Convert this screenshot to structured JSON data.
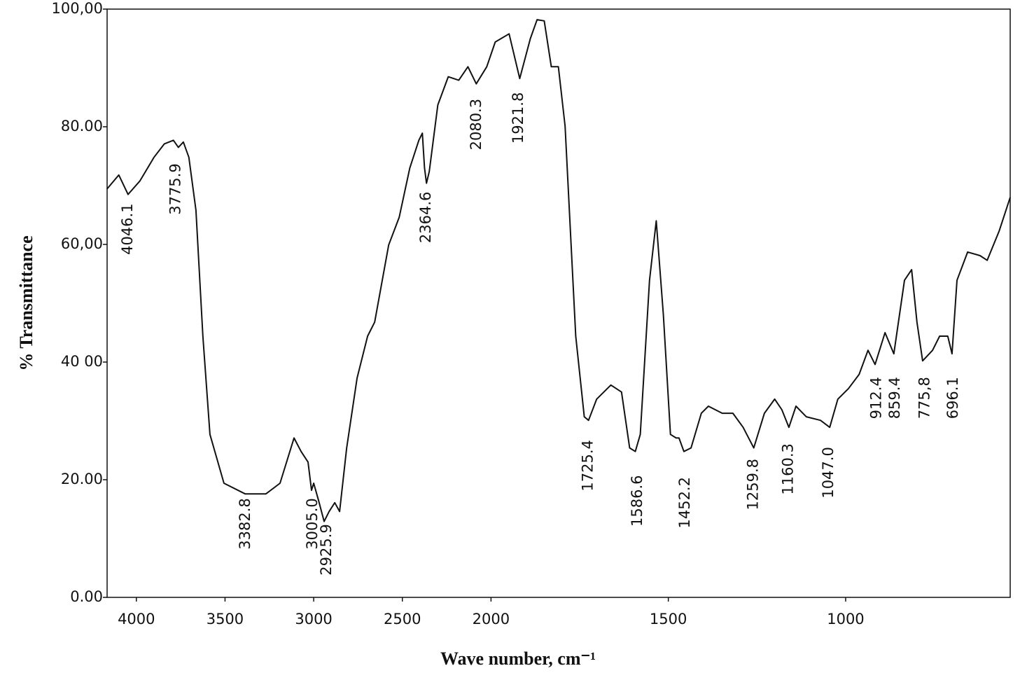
{
  "chart_data": {
    "type": "line",
    "xlabel": "Wave number, cm⁻¹",
    "ylabel": "% Transmittance",
    "xlim": [
      4165,
      536
    ],
    "x_scale_change": {
      "at": 2000,
      "factor": 2
    },
    "xticks": [
      4000,
      3500,
      3000,
      2500,
      2000,
      1500,
      1000
    ],
    "ylim": [
      0,
      100
    ],
    "yticks": [
      {
        "value": 0,
        "label": "0.00"
      },
      {
        "value": 20,
        "label": "20.00"
      },
      {
        "value": 40,
        "label": "40 00"
      },
      {
        "value": 60,
        "label": "60,00"
      },
      {
        "value": 80,
        "label": "80.00"
      },
      {
        "value": 100,
        "label": "100,00"
      }
    ],
    "color": "#111111",
    "x": [
      4166,
      4099,
      4047,
      3980,
      3901,
      3842,
      3791,
      3763,
      3735,
      3704,
      3664,
      3625,
      3585,
      3506,
      3387,
      3269,
      3190,
      3111,
      3071,
      3032,
      3012,
      3000,
      2972,
      2941,
      2913,
      2881,
      2854,
      2814,
      2755,
      2696,
      2656,
      2577,
      2518,
      2458,
      2407,
      2387,
      2375,
      2364,
      2348,
      2300,
      2241,
      2182,
      2130,
      2083,
      2024,
      1988,
      1949,
      1919,
      1889,
      1870,
      1850,
      1830,
      1810,
      1791,
      1761,
      1737,
      1725,
      1702,
      1662,
      1632,
      1609,
      1593,
      1579,
      1553,
      1534,
      1514,
      1494,
      1478,
      1470,
      1456,
      1436,
      1407,
      1387,
      1348,
      1318,
      1289,
      1259,
      1229,
      1200,
      1180,
      1160,
      1140,
      1111,
      1071,
      1045,
      1022,
      992,
      962,
      937,
      917,
      889,
      864,
      834,
      814,
      799,
      783,
      755,
      735,
      712,
      700,
      686,
      656,
      621,
      601,
      567,
      536
    ],
    "values": [
      69.4,
      71.8,
      68.5,
      70.8,
      74.8,
      77.1,
      77.7,
      76.5,
      77.4,
      74.8,
      65.8,
      44.4,
      27.7,
      19.4,
      17.6,
      17.6,
      19.4,
      27.1,
      24.8,
      23,
      18.2,
      19.4,
      16.4,
      12.9,
      14.6,
      16.1,
      14.6,
      25.4,
      37.3,
      44.4,
      46.8,
      59.9,
      64.6,
      73,
      77.7,
      78.9,
      73,
      70.4,
      72.4,
      83.7,
      88.5,
      87.9,
      90.2,
      87.3,
      90.2,
      94.4,
      95.8,
      88.2,
      95,
      98.2,
      98,
      90.2,
      90.2,
      80.1,
      44.4,
      30.7,
      30.1,
      33.7,
      36.1,
      34.9,
      25.4,
      24.8,
      27.7,
      53.9,
      64,
      48,
      27.7,
      27.1,
      27.1,
      24.8,
      25.4,
      31.3,
      32.5,
      31.3,
      31.3,
      28.9,
      25.4,
      31.3,
      33.7,
      31.9,
      28.9,
      32.5,
      30.7,
      30.1,
      28.9,
      33.7,
      35.5,
      37.9,
      42,
      39.6,
      45,
      41.4,
      53.9,
      55.7,
      46.8,
      40.2,
      42,
      44.4,
      44.4,
      41.4,
      53.9,
      58.7,
      58.1,
      57.3,
      62.3,
      68
    ],
    "annotations": [
      {
        "label": "4046.1",
        "x": 4046.1,
        "y": 62.6
      },
      {
        "label": "3775.9",
        "x": 3775.9,
        "y": 69.4
      },
      {
        "label": "3382.8",
        "x": 3382.8,
        "y": 12.5
      },
      {
        "label": "3005.0",
        "x": 3005.0,
        "y": 12.5
      },
      {
        "label": "2925.9",
        "x": 2925.9,
        "y": 8.1
      },
      {
        "label": "2364.6",
        "x": 2364.6,
        "y": 64.6
      },
      {
        "label": "2080.3",
        "x": 2080.3,
        "y": 80.4
      },
      {
        "label": "1921.8",
        "x": 1921.8,
        "y": 81.5
      },
      {
        "label": "1725.4",
        "x": 1725.4,
        "y": 22.4
      },
      {
        "label": "1586.6",
        "x": 1586.6,
        "y": 16.4
      },
      {
        "label": "1452.2",
        "x": 1452.2,
        "y": 16.1
      },
      {
        "label": "1259.8",
        "x": 1259.8,
        "y": 19.2
      },
      {
        "label": "1160.3",
        "x": 1160.3,
        "y": 21.8
      },
      {
        "label": "1047.0",
        "x": 1047.0,
        "y": 21.2
      },
      {
        "label": "912.4",
        "x": 912.4,
        "y": 33.9
      },
      {
        "label": "859.4",
        "x": 859.4,
        "y": 33.9
      },
      {
        "label": "775,8",
        "x": 775.8,
        "y": 33.9
      },
      {
        "label": "696.1",
        "x": 696.1,
        "y": 33.9
      }
    ]
  }
}
